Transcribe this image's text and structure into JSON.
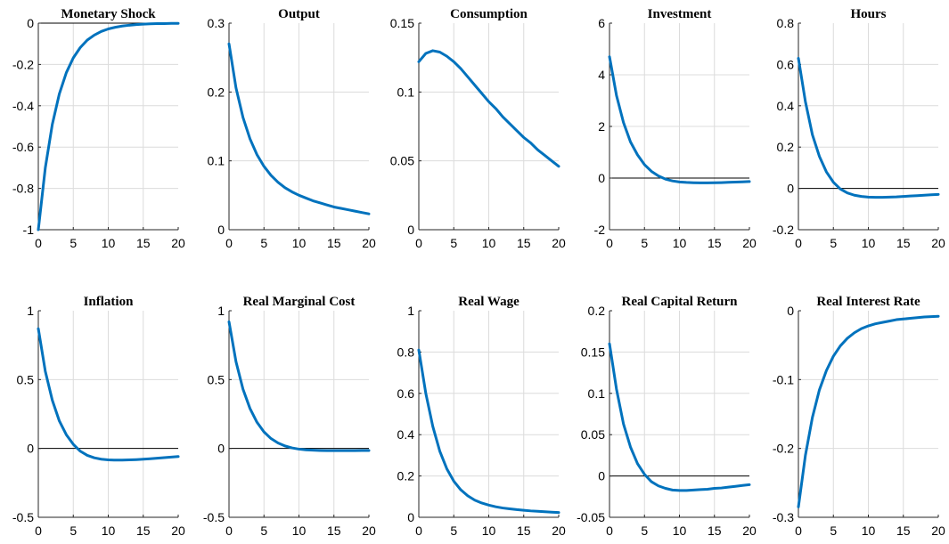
{
  "colors": {
    "line": "#0072BD",
    "grid": "#dcdcdc",
    "axis": "#262626",
    "zero_line": "#000000"
  },
  "chart_data": [
    {
      "type": "line",
      "title": "Monetary Shock",
      "xlabel": "",
      "ylabel": "",
      "xlim": [
        0,
        20
      ],
      "ylim": [
        -1,
        0
      ],
      "xticks": [
        0,
        5,
        10,
        15,
        20
      ],
      "yticks": [
        -1,
        -0.8,
        -0.6,
        -0.4,
        -0.2,
        0
      ],
      "ytick_labels": [
        "-1",
        "-0.8",
        "-0.6",
        "-0.4",
        "-0.2",
        "0"
      ],
      "grid": true,
      "zero_line": true,
      "x": [
        0,
        1,
        2,
        3,
        4,
        5,
        6,
        7,
        8,
        9,
        10,
        11,
        12,
        13,
        14,
        15,
        16,
        17,
        18,
        19,
        20
      ],
      "series": [
        {
          "values": [
            -1.0,
            -0.7,
            -0.49,
            -0.343,
            -0.24,
            -0.168,
            -0.118,
            -0.082,
            -0.058,
            -0.04,
            -0.028,
            -0.02,
            -0.014,
            -0.01,
            -0.007,
            -0.005,
            -0.003,
            -0.002,
            -0.002,
            -0.001,
            -0.001
          ]
        }
      ]
    },
    {
      "type": "line",
      "title": "Output",
      "xlabel": "",
      "ylabel": "",
      "xlim": [
        0,
        20
      ],
      "ylim": [
        0,
        0.3
      ],
      "xticks": [
        0,
        5,
        10,
        15,
        20
      ],
      "yticks": [
        0,
        0.1,
        0.2,
        0.3
      ],
      "ytick_labels": [
        "0",
        "0.1",
        "0.2",
        "0.3"
      ],
      "grid": true,
      "zero_line": false,
      "x": [
        0,
        1,
        2,
        3,
        4,
        5,
        6,
        7,
        8,
        9,
        10,
        11,
        12,
        13,
        14,
        15,
        16,
        17,
        18,
        19,
        20
      ],
      "series": [
        {
          "values": [
            0.27,
            0.206,
            0.163,
            0.132,
            0.109,
            0.092,
            0.079,
            0.069,
            0.061,
            0.055,
            0.05,
            0.046,
            0.042,
            0.039,
            0.036,
            0.033,
            0.031,
            0.029,
            0.027,
            0.025,
            0.023
          ]
        }
      ]
    },
    {
      "type": "line",
      "title": "Consumption",
      "xlabel": "",
      "ylabel": "",
      "xlim": [
        0,
        20
      ],
      "ylim": [
        0,
        0.15
      ],
      "xticks": [
        0,
        5,
        10,
        15,
        20
      ],
      "yticks": [
        0,
        0.05,
        0.1,
        0.15
      ],
      "ytick_labels": [
        "0",
        "0.05",
        "0.1",
        "0.15"
      ],
      "grid": true,
      "zero_line": false,
      "x": [
        0,
        1,
        2,
        3,
        4,
        5,
        6,
        7,
        8,
        9,
        10,
        11,
        12,
        13,
        14,
        15,
        16,
        17,
        18,
        19,
        20
      ],
      "series": [
        {
          "values": [
            0.122,
            0.128,
            0.13,
            0.129,
            0.126,
            0.122,
            0.117,
            0.111,
            0.105,
            0.099,
            0.093,
            0.088,
            0.082,
            0.077,
            0.072,
            0.067,
            0.063,
            0.058,
            0.054,
            0.05,
            0.046
          ]
        }
      ]
    },
    {
      "type": "line",
      "title": "Investment",
      "xlabel": "",
      "ylabel": "",
      "xlim": [
        0,
        20
      ],
      "ylim": [
        -2,
        6
      ],
      "xticks": [
        0,
        5,
        10,
        15,
        20
      ],
      "yticks": [
        -2,
        0,
        2,
        4,
        6
      ],
      "ytick_labels": [
        "-2",
        "0",
        "2",
        "4",
        "6"
      ],
      "grid": true,
      "zero_line": true,
      "x": [
        0,
        1,
        2,
        3,
        4,
        5,
        6,
        7,
        8,
        9,
        10,
        11,
        12,
        13,
        14,
        15,
        16,
        17,
        18,
        19,
        20
      ],
      "series": [
        {
          "values": [
            4.7,
            3.2,
            2.15,
            1.4,
            0.9,
            0.52,
            0.26,
            0.08,
            -0.04,
            -0.11,
            -0.15,
            -0.17,
            -0.18,
            -0.185,
            -0.185,
            -0.18,
            -0.175,
            -0.165,
            -0.155,
            -0.145,
            -0.135
          ]
        }
      ]
    },
    {
      "type": "line",
      "title": "Hours",
      "xlabel": "",
      "ylabel": "",
      "xlim": [
        0,
        20
      ],
      "ylim": [
        -0.2,
        0.8
      ],
      "xticks": [
        0,
        5,
        10,
        15,
        20
      ],
      "yticks": [
        -0.2,
        0,
        0.2,
        0.4,
        0.6,
        0.8
      ],
      "ytick_labels": [
        "-0.2",
        "0",
        "0.2",
        "0.4",
        "0.6",
        "0.8"
      ],
      "grid": true,
      "zero_line": true,
      "x": [
        0,
        1,
        2,
        3,
        4,
        5,
        6,
        7,
        8,
        9,
        10,
        11,
        12,
        13,
        14,
        15,
        16,
        17,
        18,
        19,
        20
      ],
      "series": [
        {
          "values": [
            0.63,
            0.42,
            0.26,
            0.155,
            0.08,
            0.03,
            -0.003,
            -0.022,
            -0.033,
            -0.039,
            -0.042,
            -0.043,
            -0.043,
            -0.042,
            -0.041,
            -0.039,
            -0.037,
            -0.035,
            -0.033,
            -0.031,
            -0.029
          ]
        }
      ]
    },
    {
      "type": "line",
      "title": "Inflation",
      "xlabel": "",
      "ylabel": "",
      "xlim": [
        0,
        20
      ],
      "ylim": [
        -0.5,
        1
      ],
      "xticks": [
        0,
        5,
        10,
        15,
        20
      ],
      "yticks": [
        -0.5,
        0,
        0.5,
        1
      ],
      "ytick_labels": [
        "-0.5",
        "0",
        "0.5",
        "1"
      ],
      "grid": true,
      "zero_line": true,
      "x": [
        0,
        1,
        2,
        3,
        4,
        5,
        6,
        7,
        8,
        9,
        10,
        11,
        12,
        13,
        14,
        15,
        16,
        17,
        18,
        19,
        20
      ],
      "series": [
        {
          "values": [
            0.87,
            0.56,
            0.35,
            0.2,
            0.1,
            0.03,
            -0.02,
            -0.05,
            -0.068,
            -0.078,
            -0.083,
            -0.085,
            -0.085,
            -0.083,
            -0.081,
            -0.078,
            -0.075,
            -0.071,
            -0.067,
            -0.063,
            -0.059
          ]
        }
      ]
    },
    {
      "type": "line",
      "title": "Real Marginal Cost",
      "xlabel": "",
      "ylabel": "",
      "xlim": [
        0,
        20
      ],
      "ylim": [
        -0.5,
        1
      ],
      "xticks": [
        0,
        5,
        10,
        15,
        20
      ],
      "yticks": [
        -0.5,
        0,
        0.5,
        1
      ],
      "ytick_labels": [
        "-0.5",
        "0",
        "0.5",
        "1"
      ],
      "grid": true,
      "zero_line": true,
      "x": [
        0,
        1,
        2,
        3,
        4,
        5,
        6,
        7,
        8,
        9,
        10,
        11,
        12,
        13,
        14,
        15,
        16,
        17,
        18,
        19,
        20
      ],
      "series": [
        {
          "values": [
            0.92,
            0.63,
            0.43,
            0.29,
            0.19,
            0.12,
            0.072,
            0.04,
            0.018,
            0.004,
            -0.005,
            -0.01,
            -0.013,
            -0.015,
            -0.016,
            -0.016,
            -0.016,
            -0.016,
            -0.016,
            -0.015,
            -0.015
          ]
        }
      ]
    },
    {
      "type": "line",
      "title": "Real Wage",
      "xlabel": "",
      "ylabel": "",
      "xlim": [
        0,
        20
      ],
      "ylim": [
        0,
        1
      ],
      "xticks": [
        0,
        5,
        10,
        15,
        20
      ],
      "yticks": [
        0,
        0.2,
        0.4,
        0.6,
        0.8,
        1
      ],
      "ytick_labels": [
        "0",
        "0.2",
        "0.4",
        "0.6",
        "0.8",
        "1"
      ],
      "grid": true,
      "zero_line": false,
      "x": [
        0,
        1,
        2,
        3,
        4,
        5,
        6,
        7,
        8,
        9,
        10,
        11,
        12,
        13,
        14,
        15,
        16,
        17,
        18,
        19,
        20
      ],
      "series": [
        {
          "values": [
            0.81,
            0.6,
            0.44,
            0.32,
            0.235,
            0.175,
            0.133,
            0.104,
            0.083,
            0.069,
            0.059,
            0.051,
            0.045,
            0.041,
            0.037,
            0.034,
            0.031,
            0.029,
            0.027,
            0.025,
            0.023
          ]
        }
      ]
    },
    {
      "type": "line",
      "title": "Real Capital Return",
      "xlabel": "",
      "ylabel": "",
      "xlim": [
        0,
        20
      ],
      "ylim": [
        -0.05,
        0.2
      ],
      "xticks": [
        0,
        5,
        10,
        15,
        20
      ],
      "yticks": [
        -0.05,
        0,
        0.05,
        0.1,
        0.15,
        0.2
      ],
      "ytick_labels": [
        "-0.05",
        "0",
        "0.05",
        "0.1",
        "0.15",
        "0.2"
      ],
      "grid": true,
      "zero_line": true,
      "x": [
        0,
        1,
        2,
        3,
        4,
        5,
        6,
        7,
        8,
        9,
        10,
        11,
        12,
        13,
        14,
        15,
        16,
        17,
        18,
        19,
        20
      ],
      "series": [
        {
          "values": [
            0.16,
            0.105,
            0.063,
            0.035,
            0.015,
            0.002,
            -0.007,
            -0.012,
            -0.015,
            -0.017,
            -0.0175,
            -0.0175,
            -0.017,
            -0.0165,
            -0.016,
            -0.015,
            -0.0145,
            -0.0135,
            -0.0125,
            -0.0115,
            -0.0105
          ]
        }
      ]
    },
    {
      "type": "line",
      "title": "Real Interest Rate",
      "xlabel": "",
      "ylabel": "",
      "xlim": [
        0,
        20
      ],
      "ylim": [
        -0.3,
        0
      ],
      "xticks": [
        0,
        5,
        10,
        15,
        20
      ],
      "yticks": [
        -0.3,
        -0.2,
        -0.1,
        0
      ],
      "ytick_labels": [
        "-0.3",
        "-0.2",
        "-0.1",
        "0"
      ],
      "grid": true,
      "zero_line": false,
      "x": [
        0,
        1,
        2,
        3,
        4,
        5,
        6,
        7,
        8,
        9,
        10,
        11,
        12,
        13,
        14,
        15,
        16,
        17,
        18,
        19,
        20
      ],
      "series": [
        {
          "values": [
            -0.285,
            -0.21,
            -0.155,
            -0.115,
            -0.087,
            -0.066,
            -0.051,
            -0.04,
            -0.032,
            -0.026,
            -0.022,
            -0.019,
            -0.017,
            -0.015,
            -0.013,
            -0.012,
            -0.011,
            -0.01,
            -0.009,
            -0.0085,
            -0.008
          ]
        }
      ]
    }
  ]
}
